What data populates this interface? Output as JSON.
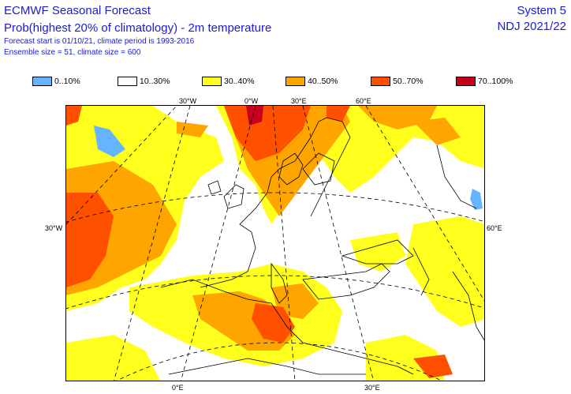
{
  "header": {
    "title": "ECMWF Seasonal Forecast",
    "subtitle": "Prob(highest 20% of climatology) - 2m temperature",
    "forecast_info": "Forecast start is 01/10/21, climate period is 1993-2016",
    "ensemble_info": "Ensemble size = 51, climate size = 600",
    "system": "System 5",
    "period": "NDJ 2021/22"
  },
  "legend": [
    {
      "label": "0..10%",
      "color": "#66b4ff"
    },
    {
      "label": "10..30%",
      "color": "#ffffff"
    },
    {
      "label": "30..40%",
      "color": "#ffff1e"
    },
    {
      "label": "40..50%",
      "color": "#ffa500"
    },
    {
      "label": "50..70%",
      "color": "#ff5000"
    },
    {
      "label": "70..100%",
      "color": "#c8001e"
    }
  ],
  "axis_labels": {
    "top_30w": "30°W",
    "top_0w": "0°W",
    "top_30e": "30°E",
    "top_60e": "60°E",
    "left_30w": "30°W",
    "right_60e": "60°E",
    "bottom_0e": "0°E",
    "bottom_30e": "30°E"
  }
}
